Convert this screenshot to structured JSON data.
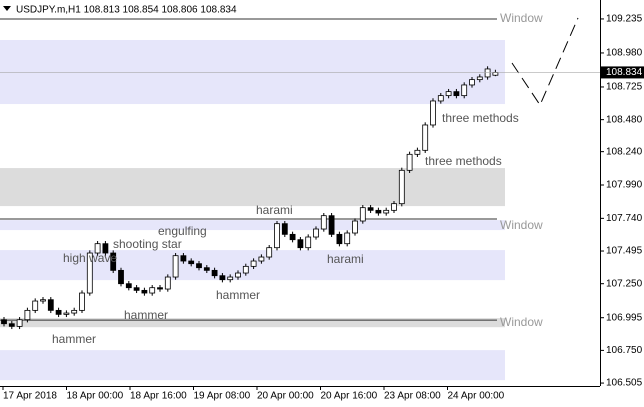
{
  "chart_data": {
    "type": "candlestick",
    "title": "USDJPY.m,H1  108.813 108.854 108.806 108.834",
    "xticks": [
      "17 Apr 2018",
      "18 Apr 00:00",
      "18 Apr 16:00",
      "19 Apr 08:00",
      "20 Apr 00:00",
      "20 Apr 16:00",
      "23 Apr 08:00",
      "24 Apr 00:00"
    ],
    "ylim": [
      106.483,
      109.377
    ],
    "yticks": [
      109.235,
      {
        "value": 108.98,
        "label": "108.980"
      },
      108.725,
      {
        "value": 108.48,
        "label": "108.480"
      },
      {
        "value": 108.24,
        "label": "108.240"
      },
      {
        "value": 107.99,
        "label": "107.990"
      },
      {
        "value": 107.74,
        "label": "107.740"
      },
      107.495,
      {
        "value": 107.25,
        "label": "107.250"
      },
      106.995,
      {
        "value": 106.75,
        "label": "106.750"
      },
      106.505
    ],
    "open": [
      106.98,
      106.95,
      106.93,
      106.98,
      107.05,
      107.12,
      107.13,
      107.05,
      107.02,
      107.03,
      107.05,
      107.18,
      107.48,
      107.55,
      107.48,
      107.35,
      107.25,
      107.22,
      107.2,
      107.18,
      107.22,
      107.21,
      107.3,
      107.46,
      107.42,
      107.4,
      107.37,
      107.35,
      107.31,
      107.28,
      107.3,
      107.33,
      107.38,
      107.42,
      107.45,
      107.52,
      107.7,
      107.62,
      107.58,
      107.52,
      107.6,
      107.66,
      107.76,
      107.62,
      107.55,
      107.63,
      107.72,
      107.82,
      107.8,
      107.78,
      107.8,
      107.85,
      108.1,
      108.22,
      108.25,
      108.44,
      108.62,
      108.66,
      108.69,
      108.66,
      108.74,
      108.78,
      108.8,
      108.813
    ],
    "high": [
      107.0,
      106.97,
      107.0,
      107.07,
      107.14,
      107.15,
      107.15,
      107.07,
      107.05,
      107.07,
      107.2,
      107.5,
      107.57,
      107.57,
      107.5,
      107.37,
      107.27,
      107.24,
      107.22,
      107.24,
      107.24,
      107.32,
      107.48,
      107.48,
      107.44,
      107.42,
      107.39,
      107.37,
      107.33,
      107.32,
      107.35,
      107.4,
      107.44,
      107.47,
      107.54,
      107.72,
      107.72,
      107.64,
      107.6,
      107.62,
      107.68,
      107.78,
      107.78,
      107.64,
      107.65,
      107.74,
      107.84,
      107.84,
      107.82,
      107.82,
      107.87,
      108.12,
      108.24,
      108.27,
      108.46,
      108.64,
      108.68,
      108.71,
      108.71,
      108.76,
      108.8,
      108.82,
      108.88,
      108.854
    ],
    "low": [
      106.93,
      106.91,
      106.91,
      106.96,
      107.03,
      107.1,
      107.03,
      107.0,
      107.0,
      107.01,
      107.03,
      107.16,
      107.46,
      107.46,
      107.33,
      107.23,
      107.2,
      107.18,
      107.16,
      107.16,
      107.19,
      107.19,
      107.28,
      107.4,
      107.38,
      107.35,
      107.33,
      107.29,
      107.26,
      107.26,
      107.28,
      107.31,
      107.36,
      107.4,
      107.43,
      107.5,
      107.6,
      107.56,
      107.5,
      107.5,
      107.58,
      107.64,
      107.6,
      107.53,
      107.53,
      107.61,
      107.7,
      107.78,
      107.76,
      107.76,
      107.78,
      107.83,
      108.08,
      108.2,
      108.23,
      108.42,
      108.6,
      108.64,
      108.64,
      108.64,
      108.72,
      108.76,
      108.78,
      108.806
    ],
    "close": [
      106.95,
      106.93,
      106.98,
      107.05,
      107.12,
      107.13,
      107.05,
      107.02,
      107.03,
      107.05,
      107.18,
      107.48,
      107.55,
      107.48,
      107.35,
      107.25,
      107.22,
      107.2,
      107.18,
      107.22,
      107.21,
      107.3,
      107.46,
      107.42,
      107.4,
      107.37,
      107.35,
      107.31,
      107.28,
      107.3,
      107.33,
      107.38,
      107.42,
      107.45,
      107.52,
      107.7,
      107.62,
      107.58,
      107.52,
      107.6,
      107.66,
      107.76,
      107.62,
      107.55,
      107.63,
      107.72,
      107.82,
      107.8,
      107.78,
      107.8,
      107.85,
      108.1,
      108.22,
      108.25,
      108.44,
      108.62,
      108.66,
      108.69,
      108.66,
      108.74,
      108.78,
      108.8,
      108.86,
      108.834
    ],
    "zones": [
      {
        "range": [
          108.597,
          109.077
        ],
        "color": "#e6e6fa"
      },
      {
        "range": [
          107.832,
          108.117
        ],
        "color": "#dcdcdc"
      },
      {
        "range": [
          107.652,
          107.727
        ],
        "color": "#e6e6fa"
      },
      {
        "range": [
          107.277,
          107.502
        ],
        "color": "#e6e6fa"
      },
      {
        "range": [
          106.924,
          106.992
        ],
        "color": "#dcdcdc"
      },
      {
        "range": [
          106.527,
          106.752
        ],
        "color": "#e6e6fa"
      }
    ],
    "levels": [
      109.235,
      107.735,
      106.977
    ],
    "annotations": [
      "Window",
      "Window",
      "Window",
      "three methods",
      "three methods",
      "harami",
      "harami",
      "engulfing",
      "shooting star",
      "high wave",
      "hammer",
      "hammer",
      "hammer"
    ]
  }
}
